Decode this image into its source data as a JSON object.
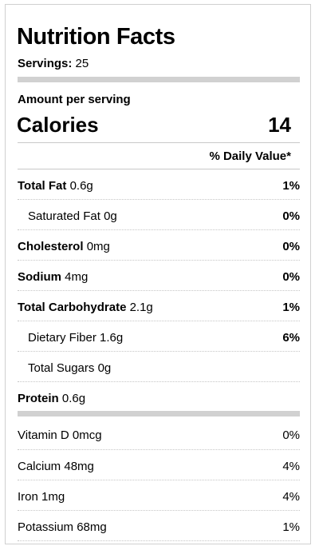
{
  "title": "Nutrition Facts",
  "servings": {
    "label": "Servings:",
    "value": "25"
  },
  "amount_per_serving": "Amount per serving",
  "calories": {
    "label": "Calories",
    "value": "14"
  },
  "daily_value_header": "% Daily Value*",
  "nutrients": [
    {
      "name": "Total Fat",
      "amount": "0.6g",
      "dv": "1%"
    },
    {
      "name": "Saturated Fat",
      "amount": "0g",
      "dv": "0%"
    },
    {
      "name": "Cholesterol",
      "amount": "0mg",
      "dv": "0%"
    },
    {
      "name": "Sodium",
      "amount": "4mg",
      "dv": "0%"
    },
    {
      "name": "Total Carbohydrate",
      "amount": "2.1g",
      "dv": "1%"
    },
    {
      "name": "Dietary Fiber",
      "amount": "1.6g",
      "dv": "6%"
    },
    {
      "name": "Total Sugars",
      "amount": "0g",
      "dv": ""
    },
    {
      "name": "Protein",
      "amount": "0.6g",
      "dv": ""
    }
  ],
  "vitamins": [
    {
      "name": "Vitamin D",
      "amount": "0mcg",
      "dv": "0%"
    },
    {
      "name": "Calcium",
      "amount": "48mg",
      "dv": "4%"
    },
    {
      "name": "Iron",
      "amount": "1mg",
      "dv": "4%"
    },
    {
      "name": "Potassium",
      "amount": "68mg",
      "dv": "1%"
    }
  ]
}
